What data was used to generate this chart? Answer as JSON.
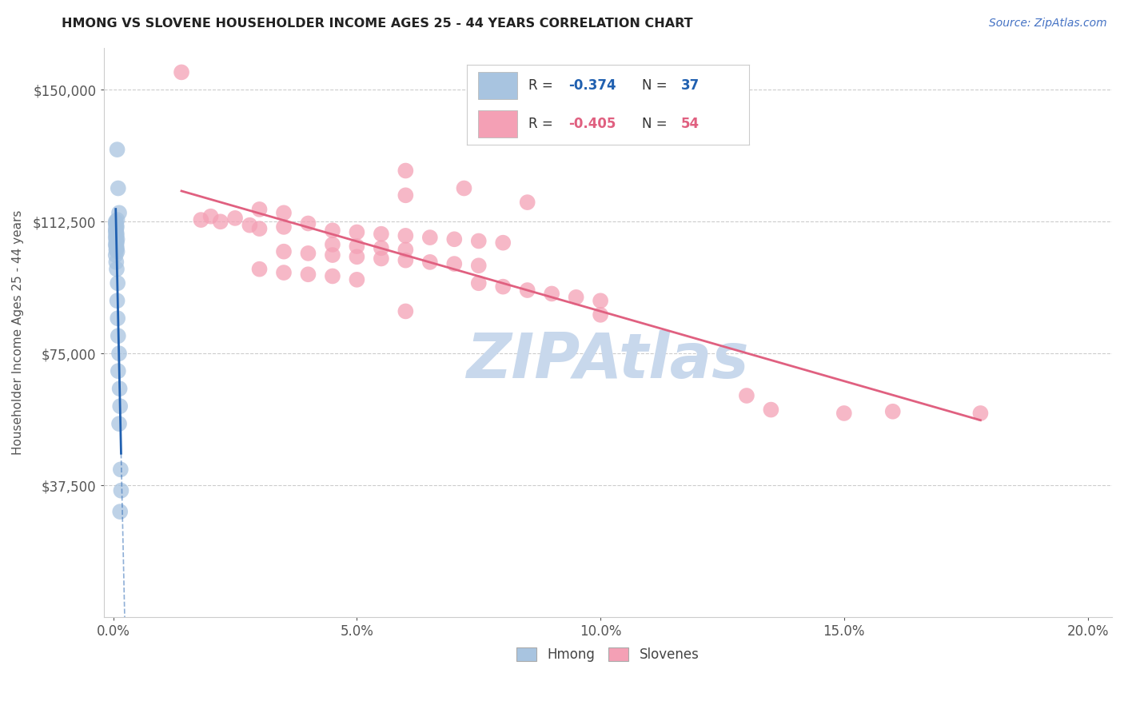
{
  "title": "HMONG VS SLOVENE HOUSEHOLDER INCOME AGES 25 - 44 YEARS CORRELATION CHART",
  "source": "Source: ZipAtlas.com",
  "xlabel_ticks": [
    "0.0%",
    "5.0%",
    "10.0%",
    "15.0%",
    "20.0%"
  ],
  "xlabel_values": [
    0.0,
    0.05,
    0.1,
    0.15,
    0.2
  ],
  "ylabel": "Householder Income Ages 25 - 44 years",
  "ylabel_ticks": [
    "$37,500",
    "$75,000",
    "$112,500",
    "$150,000"
  ],
  "ylabel_values": [
    37500,
    75000,
    112500,
    150000
  ],
  "ymin": 0,
  "ymax": 162000,
  "xmin": -0.002,
  "xmax": 0.205,
  "hmong_R": -0.374,
  "hmong_N": 37,
  "slovene_R": -0.405,
  "slovene_N": 54,
  "legend_labels": [
    "Hmong",
    "Slovenes"
  ],
  "hmong_color": "#a8c4e0",
  "slovene_color": "#f4a0b5",
  "hmong_line_color": "#2060b0",
  "slovene_line_color": "#e06080",
  "background_color": "#ffffff",
  "grid_color": "#cccccc",
  "title_color": "#222222",
  "source_color": "#4472c4",
  "axis_label_color": "#4472c4",
  "tick_label_color": "#555555",
  "watermark_text": "ZIPAtlas",
  "watermark_color": "#c8d8ec",
  "hmong_scatter": [
    [
      0.0008,
      133000
    ],
    [
      0.001,
      122000
    ],
    [
      0.0012,
      115000
    ],
    [
      0.0008,
      113000
    ],
    [
      0.0005,
      112500
    ],
    [
      0.0005,
      112000
    ],
    [
      0.0006,
      111500
    ],
    [
      0.0007,
      111000
    ],
    [
      0.0005,
      110500
    ],
    [
      0.0006,
      110000
    ],
    [
      0.0005,
      109500
    ],
    [
      0.0007,
      109000
    ],
    [
      0.0006,
      108500
    ],
    [
      0.0005,
      108000
    ],
    [
      0.0008,
      107500
    ],
    [
      0.0006,
      107000
    ],
    [
      0.0007,
      106500
    ],
    [
      0.0005,
      106000
    ],
    [
      0.0006,
      105500
    ],
    [
      0.0007,
      105000
    ],
    [
      0.0006,
      104500
    ],
    [
      0.0008,
      104000
    ],
    [
      0.0005,
      103000
    ],
    [
      0.0006,
      101000
    ],
    [
      0.0007,
      99000
    ],
    [
      0.0009,
      95000
    ],
    [
      0.0008,
      90000
    ],
    [
      0.0009,
      85000
    ],
    [
      0.001,
      80000
    ],
    [
      0.0012,
      75000
    ],
    [
      0.001,
      70000
    ],
    [
      0.0013,
      65000
    ],
    [
      0.0014,
      60000
    ],
    [
      0.0012,
      55000
    ],
    [
      0.0015,
      42000
    ],
    [
      0.0016,
      36000
    ],
    [
      0.0014,
      30000
    ]
  ],
  "slovene_scatter": [
    [
      0.014,
      155000
    ],
    [
      0.06,
      127000
    ],
    [
      0.072,
      122000
    ],
    [
      0.06,
      120000
    ],
    [
      0.085,
      118000
    ],
    [
      0.03,
      116000
    ],
    [
      0.035,
      115000
    ],
    [
      0.02,
      114000
    ],
    [
      0.025,
      113500
    ],
    [
      0.018,
      113000
    ],
    [
      0.022,
      112500
    ],
    [
      0.04,
      112000
    ],
    [
      0.028,
      111500
    ],
    [
      0.035,
      111000
    ],
    [
      0.03,
      110500
    ],
    [
      0.045,
      110000
    ],
    [
      0.05,
      109500
    ],
    [
      0.055,
      109000
    ],
    [
      0.06,
      108500
    ],
    [
      0.065,
      108000
    ],
    [
      0.07,
      107500
    ],
    [
      0.075,
      107000
    ],
    [
      0.08,
      106500
    ],
    [
      0.045,
      106000
    ],
    [
      0.05,
      105500
    ],
    [
      0.055,
      105000
    ],
    [
      0.06,
      104500
    ],
    [
      0.035,
      104000
    ],
    [
      0.04,
      103500
    ],
    [
      0.045,
      103000
    ],
    [
      0.05,
      102500
    ],
    [
      0.055,
      102000
    ],
    [
      0.06,
      101500
    ],
    [
      0.065,
      101000
    ],
    [
      0.07,
      100500
    ],
    [
      0.075,
      100000
    ],
    [
      0.03,
      99000
    ],
    [
      0.035,
      98000
    ],
    [
      0.04,
      97500
    ],
    [
      0.045,
      97000
    ],
    [
      0.05,
      96000
    ],
    [
      0.075,
      95000
    ],
    [
      0.08,
      94000
    ],
    [
      0.085,
      93000
    ],
    [
      0.09,
      92000
    ],
    [
      0.095,
      91000
    ],
    [
      0.1,
      90000
    ],
    [
      0.06,
      87000
    ],
    [
      0.1,
      86000
    ],
    [
      0.13,
      63000
    ],
    [
      0.135,
      59000
    ],
    [
      0.15,
      58000
    ],
    [
      0.16,
      58500
    ],
    [
      0.178,
      58000
    ]
  ]
}
